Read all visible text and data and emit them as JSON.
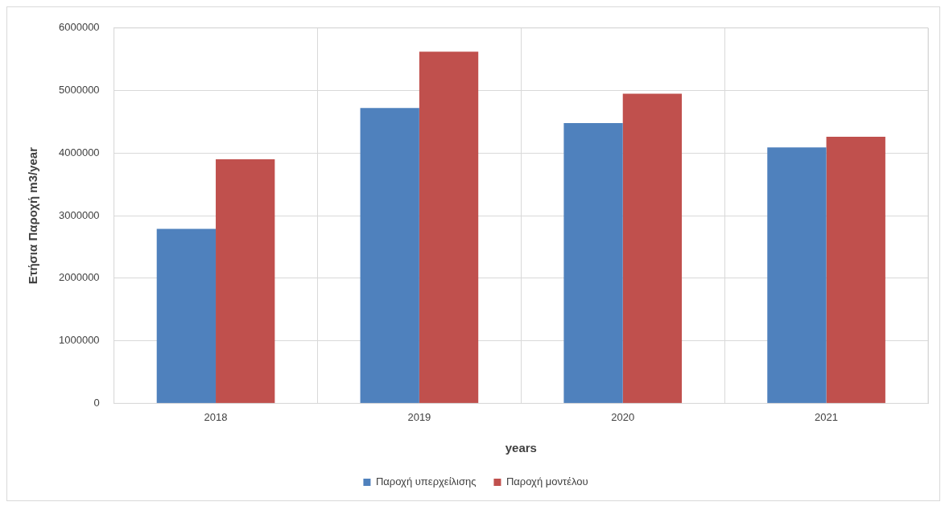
{
  "chart_data": {
    "type": "bar",
    "xlabel": "years",
    "ylabel": "Ετήσια Παροχή m3/year",
    "categories": [
      "2018",
      "2019",
      "2020",
      "2021"
    ],
    "series": [
      {
        "name": "Παροχή υπερχείλισης",
        "color": "#4f81bd",
        "values": [
          2790000,
          4720000,
          4480000,
          4090000
        ]
      },
      {
        "name": "Παροχή μοντέλου",
        "color": "#c0504d",
        "values": [
          3900000,
          5620000,
          4950000,
          4260000
        ]
      }
    ],
    "ylim": [
      0,
      6000000
    ],
    "yticks": [
      0,
      1000000,
      2000000,
      3000000,
      4000000,
      5000000,
      6000000
    ],
    "grid": true,
    "legend": "bottom"
  }
}
